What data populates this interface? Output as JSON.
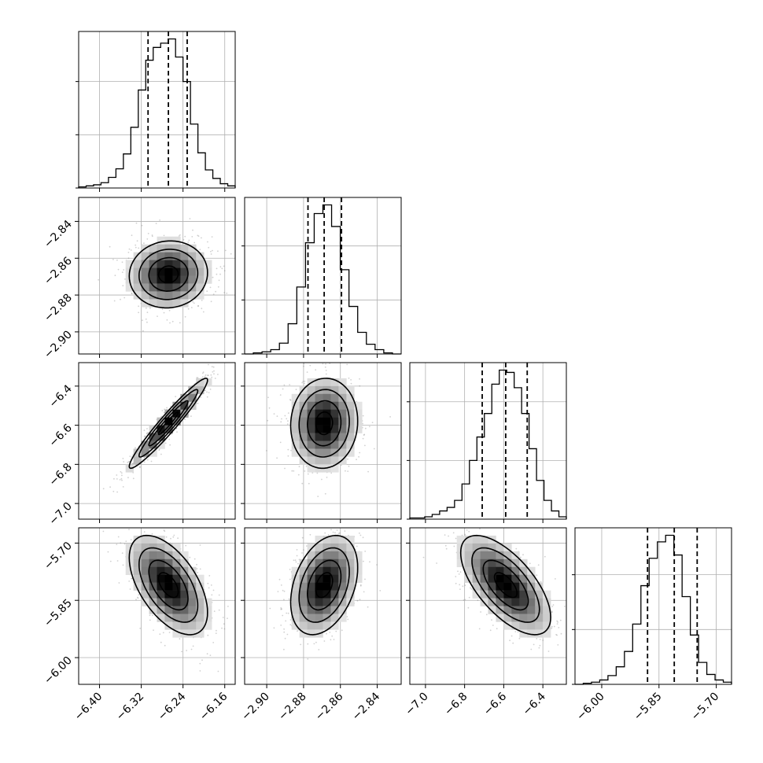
{
  "chart_data": {
    "type": "corner",
    "grid": true,
    "parameters": [
      {
        "ticks": [
          -6.4,
          -6.32,
          -6.24,
          -6.16
        ],
        "tick_labels": [
          "−6.40",
          "−6.32",
          "−6.24",
          "−6.16"
        ],
        "range": [
          -6.44,
          -6.14
        ],
        "quantiles": [
          -6.307,
          -6.268,
          -6.232
        ],
        "hist_counts": [
          1,
          2,
          3,
          5,
          10,
          18,
          32,
          57,
          92,
          120,
          132,
          136,
          140,
          123,
          100,
          60,
          33,
          17,
          9,
          4,
          2
        ]
      },
      {
        "ticks": [
          -2.9,
          -2.88,
          -2.86,
          -2.84
        ],
        "tick_labels": [
          "−2.90",
          "−2.88",
          "−2.86",
          "−2.84"
        ],
        "range": [
          -2.912,
          -2.827
        ],
        "quantiles": [
          -2.8776,
          -2.8688,
          -2.8594
        ],
        "hist_counts": [
          0,
          1,
          2,
          4,
          10,
          28,
          62,
          103,
          130,
          138,
          118,
          78,
          44,
          20,
          9,
          4,
          1,
          0
        ]
      },
      {
        "ticks": [
          -7.0,
          -6.8,
          -6.6,
          -6.4
        ],
        "tick_labels": [
          "−7.0",
          "−6.8",
          "−6.6",
          "−6.4"
        ],
        "range": [
          -7.08,
          -6.28
        ],
        "quantiles": [
          -6.71,
          -6.59,
          -6.48
        ],
        "hist_counts": [
          1,
          1,
          2,
          4,
          7,
          10,
          16,
          30,
          50,
          70,
          90,
          115,
          127,
          125,
          112,
          90,
          60,
          33,
          16,
          7,
          2
        ]
      },
      {
        "ticks": [
          -6.0,
          -5.85,
          -5.7
        ],
        "tick_labels": [
          "−6.00",
          "−5.85",
          "−5.70"
        ],
        "range": [
          -6.07,
          -5.66
        ],
        "quantiles": [
          -5.88,
          -5.81,
          -5.75
        ],
        "hist_counts": [
          0,
          1,
          2,
          4,
          8,
          16,
          30,
          55,
          90,
          115,
          130,
          136,
          118,
          80,
          45,
          20,
          9,
          4,
          2
        ]
      }
    ],
    "correlations": {
      "1-0": 0.05,
      "2-0": 0.96,
      "2-1": 0.05,
      "3-0": -0.55,
      "3-1": 0.35,
      "3-2": -0.65
    }
  }
}
